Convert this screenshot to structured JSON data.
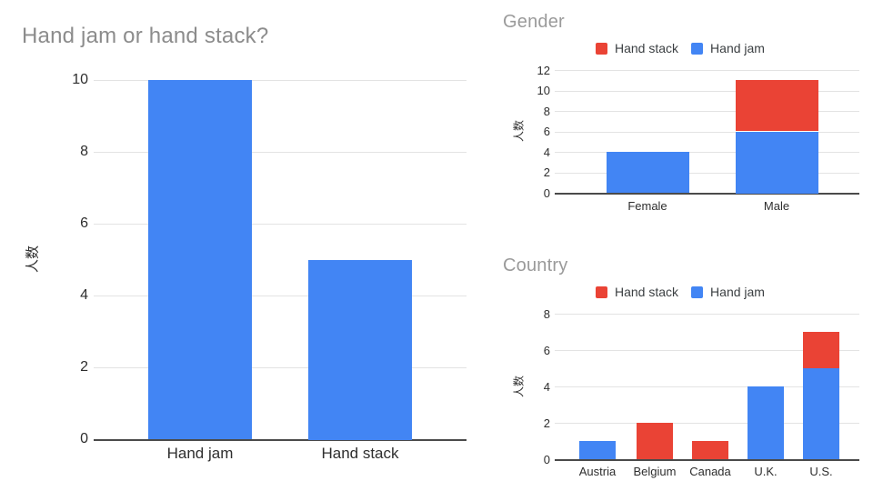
{
  "page": {
    "background": "#ffffff"
  },
  "colors": {
    "hand_jam_blue": "#4285F4",
    "hand_stack_red": "#EA4335",
    "title_gray": "#8c8c8c",
    "axis_text": "#2e2e2e",
    "gridline": "#e3e3e3",
    "baseline": "#4a4a4a"
  },
  "chart_data": [
    {
      "type": "bar",
      "stacked": false,
      "title": "Hand jam or hand stack?",
      "xlabel": "",
      "ylabel": "人数",
      "categories": [
        "Hand jam",
        "Hand stack"
      ],
      "series": [
        {
          "name": "Hand jam",
          "color": "#4285F4",
          "values": [
            10,
            5
          ]
        }
      ],
      "yticks": [
        0,
        2,
        4,
        6,
        8,
        10
      ],
      "ylim": [
        0,
        10
      ],
      "grid": true,
      "legend_position": "none"
    },
    {
      "type": "bar",
      "stacked": true,
      "title": "Gender",
      "xlabel": "",
      "ylabel": "人数",
      "categories": [
        "Female",
        "Male"
      ],
      "series": [
        {
          "name": "Hand stack",
          "color": "#EA4335",
          "values": [
            0,
            5
          ]
        },
        {
          "name": "Hand jam",
          "color": "#4285F4",
          "values": [
            4,
            6
          ]
        }
      ],
      "yticks": [
        0,
        2,
        4,
        6,
        8,
        10,
        12
      ],
      "ylim": [
        0,
        12
      ],
      "grid": true,
      "legend_position": "top"
    },
    {
      "type": "bar",
      "stacked": true,
      "title": "Country",
      "xlabel": "",
      "ylabel": "人数",
      "categories": [
        "Austria",
        "Belgium",
        "Canada",
        "U.K.",
        "U.S."
      ],
      "series": [
        {
          "name": "Hand stack",
          "color": "#EA4335",
          "values": [
            0,
            2,
            1,
            0,
            2
          ]
        },
        {
          "name": "Hand jam",
          "color": "#4285F4",
          "values": [
            1,
            0,
            0,
            4,
            5
          ]
        }
      ],
      "yticks": [
        0,
        2,
        4,
        6,
        8
      ],
      "ylim": [
        0,
        8
      ],
      "grid": true,
      "legend_position": "top"
    }
  ]
}
